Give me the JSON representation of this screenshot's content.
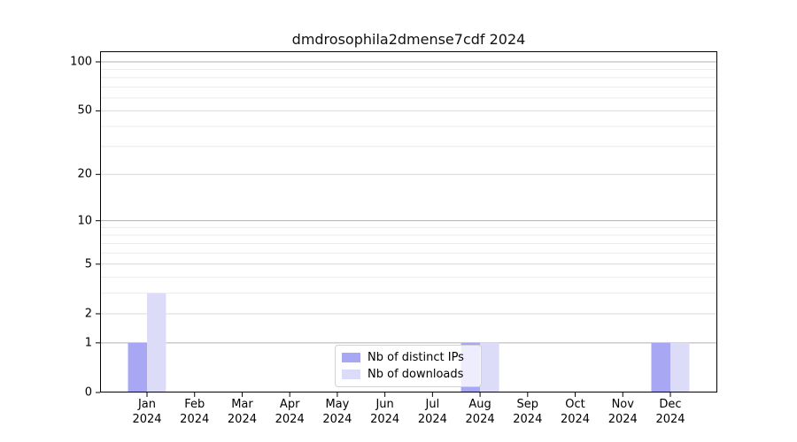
{
  "title": "dmdrosophila2dmense7cdf 2024",
  "chart_data": {
    "type": "bar",
    "title": "dmdrosophila2dmense7cdf 2024",
    "categories": [
      "Jan",
      "Feb",
      "Mar",
      "Apr",
      "May",
      "Jun",
      "Jul",
      "Aug",
      "Sep",
      "Oct",
      "Nov",
      "Dec"
    ],
    "x_tick_year": "2024",
    "series": [
      {
        "name": "Nb of distinct IPs",
        "color": "#a7a7f3",
        "values": [
          1,
          0,
          0,
          0,
          0,
          0,
          0,
          1,
          0,
          0,
          0,
          1
        ]
      },
      {
        "name": "Nb of downloads",
        "color": "#dcdcf8",
        "values": [
          3,
          0,
          0,
          0,
          0,
          0,
          0,
          1,
          0,
          0,
          0,
          1
        ]
      }
    ],
    "yscale": "log1p",
    "ylim": [
      0,
      113
    ],
    "yticks": [
      0,
      1,
      2,
      5,
      10,
      20,
      50,
      100
    ],
    "minor_gridlines": [
      3,
      4,
      6,
      7,
      8,
      9,
      30,
      40,
      60,
      70,
      80,
      90
    ],
    "major_gridlines": [
      1,
      10,
      100
    ],
    "grid": true,
    "legend_position": "lower center",
    "colors": {
      "axis": "#000000",
      "grid_minor": "#ececec",
      "grid_mid": "#d9d9d9",
      "grid_major": "#b0b0b0"
    }
  }
}
